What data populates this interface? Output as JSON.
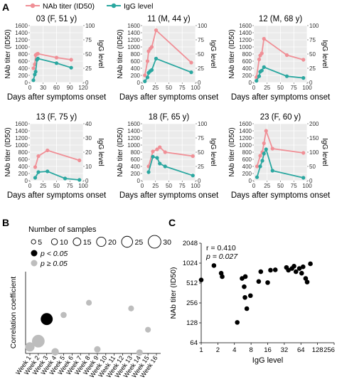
{
  "panel_labels": {
    "a": "A",
    "b": "B",
    "c": "C"
  },
  "colors": {
    "nab": "#f08f96",
    "igg": "#2aa7a0",
    "panel_bg": "#ebebeb",
    "grid": "#ffffff",
    "sig": "#000000",
    "nonsig": "#bdbdbd",
    "text": "#222222"
  },
  "chart_data": [
    {
      "type": "line",
      "panel": "A",
      "legend": {
        "placement": "top-left",
        "nab_label": "NAb titer (ID50)",
        "igg_label": "IgG level"
      },
      "xlabel": "Days after symptoms onset",
      "ylabel_left": "NAb titer (ID50)",
      "ylabel_right": "IgG level",
      "grid": true,
      "subplots": [
        {
          "title": "03 (F, 51 y)",
          "xlim": [
            0,
            120
          ],
          "xticks": [
            0,
            30,
            60,
            90,
            120
          ],
          "ylim_left": [
            0,
            1600
          ],
          "yticks_left": [
            0,
            200,
            400,
            600,
            800,
            1000,
            1200,
            1400,
            1600
          ],
          "ylim_right": [
            0,
            100
          ],
          "yticks_right": [
            0,
            25,
            50,
            75,
            100
          ],
          "nab": {
            "x": [
              8,
              11,
              13,
              16,
              18,
              60,
              93
            ],
            "y": [
              400,
              510,
              770,
              800,
              810,
              700,
              640
            ]
          },
          "igg": {
            "x": [
              8,
              11,
              13,
              16,
              18,
              60,
              93
            ],
            "y": [
              4,
              14,
              19,
              40,
              42,
              34,
              26
            ]
          }
        },
        {
          "title": "11 (M, 44 y)",
          "xlim": [
            0,
            100
          ],
          "xticks": [
            0,
            25,
            50,
            75,
            100
          ],
          "ylim_left": [
            0,
            1600
          ],
          "yticks_left": [
            0,
            200,
            400,
            600,
            800,
            1000,
            1200,
            1400,
            1600
          ],
          "ylim_right": [
            0,
            100
          ],
          "yticks_right": [
            0,
            25,
            50,
            75,
            100
          ],
          "nab": {
            "x": [
              5,
              10,
              12,
              15,
              18,
              26,
              92
            ],
            "y": [
              200,
              600,
              880,
              950,
              1000,
              1470,
              560
            ]
          },
          "igg": {
            "x": [
              5,
              10,
              12,
              15,
              18,
              26,
              92
            ],
            "y": [
              2,
              9,
              17,
              20,
              22,
              42,
              18
            ]
          }
        },
        {
          "title": "12 (M, 68 y)",
          "xlim": [
            0,
            100
          ],
          "xticks": [
            0,
            25,
            50,
            75,
            100
          ],
          "ylim_left": [
            0,
            1600
          ],
          "yticks_left": [
            0,
            200,
            400,
            600,
            800,
            1000,
            1200,
            1400,
            1600
          ],
          "ylim_right": [
            0,
            100
          ],
          "yticks_right": [
            0,
            25,
            50,
            75,
            100
          ],
          "nab": {
            "x": [
              5,
              10,
              12,
              15,
              19,
              62,
              93
            ],
            "y": [
              150,
              650,
              760,
              820,
              1230,
              770,
              640
            ]
          },
          "igg": {
            "x": [
              5,
              10,
              12,
              15,
              19,
              62,
              93
            ],
            "y": [
              3,
              11,
              19,
              21,
              27,
              11,
              8
            ]
          }
        },
        {
          "title": "13 (F, 75 y)",
          "xlim": [
            0,
            100
          ],
          "xticks": [
            0,
            25,
            50,
            75,
            100
          ],
          "ylim_left": [
            0,
            1600
          ],
          "yticks_left": [
            0,
            200,
            400,
            600,
            800,
            1000,
            1200,
            1400,
            1600
          ],
          "ylim_right": [
            0,
            40
          ],
          "yticks_right": [
            0,
            10,
            20,
            30,
            40
          ],
          "nab": {
            "x": [
              10,
              16,
              33,
              93
            ],
            "y": [
              380,
              690,
              850,
              570
            ]
          },
          "igg": {
            "x": [
              10,
              16,
              33,
              66,
              93
            ],
            "y": [
              2,
              6,
              6.5,
              1.5,
              0.5
            ]
          }
        },
        {
          "title": "18 (F, 65 y)",
          "xlim": [
            0,
            100
          ],
          "xticks": [
            0,
            25,
            50,
            75,
            100
          ],
          "ylim_left": [
            0,
            1600
          ],
          "yticks_left": [
            0,
            200,
            400,
            600,
            800,
            1000,
            1200,
            1400,
            1600
          ],
          "ylim_right": [
            0,
            100
          ],
          "yticks_right": [
            0,
            25,
            50,
            75,
            100
          ],
          "nab": {
            "x": [
              12,
              20,
              28,
              33,
              43,
              95
            ],
            "y": [
              400,
              820,
              880,
              940,
              800,
              690
            ]
          },
          "igg": {
            "x": [
              12,
              20,
              28,
              33,
              43,
              95
            ],
            "y": [
              15,
              42,
              40,
              30,
              25,
              9
            ]
          }
        },
        {
          "title": "23 (F, 60 y)",
          "xlim": [
            0,
            100
          ],
          "xticks": [
            0,
            25,
            50,
            75,
            100
          ],
          "ylim_left": [
            0,
            1600
          ],
          "yticks_left": [
            0,
            200,
            400,
            600,
            800,
            1000,
            1200,
            1400,
            1600
          ],
          "ylim_right": [
            0,
            200
          ],
          "yticks_right": [
            0,
            50,
            100,
            150,
            200
          ],
          "nab": {
            "x": [
              6,
              12,
              16,
              19,
              23,
              35,
              93
            ],
            "y": [
              400,
              700,
              800,
              1050,
              1400,
              900,
              780
            ]
          },
          "igg": {
            "x": [
              6,
              12,
              16,
              19,
              23,
              35,
              93
            ],
            "y": [
              12,
              50,
              70,
              95,
              110,
              35,
              10
            ]
          }
        }
      ]
    },
    {
      "type": "scatter",
      "panel": "B",
      "ylabel": "Correlation coefficient",
      "xlabel": "",
      "ylim": [
        0,
        1
      ],
      "categories": [
        "Week 1",
        "Week 2",
        "Week 3",
        "Week 4",
        "Week 5",
        "Week 6",
        "Week 7",
        "Week 8",
        "Week 9",
        "Week 10",
        "Week 11",
        "Week 12",
        "Week 13",
        "Week 14",
        "Week 15",
        "Week 16"
      ],
      "points": [
        {
          "week": 1,
          "r": 0.08,
          "n": 20,
          "significant": false
        },
        {
          "week": 2,
          "r": 0.15,
          "n": 30,
          "significant": false
        },
        {
          "week": 3,
          "r": 0.42,
          "n": 28,
          "significant": true
        },
        {
          "week": 4,
          "r": 0.02,
          "n": 14,
          "significant": false
        },
        {
          "week": 5,
          "r": 0.47,
          "n": 10,
          "significant": false
        },
        {
          "week": 8,
          "r": 0.62,
          "n": 9,
          "significant": false
        },
        {
          "week": 9,
          "r": 0.05,
          "n": 11,
          "significant": false
        },
        {
          "week": 13,
          "r": 0.55,
          "n": 9,
          "significant": false
        },
        {
          "week": 14,
          "r": 0.01,
          "n": 11,
          "significant": false
        },
        {
          "week": 15,
          "r": 0.29,
          "n": 9,
          "significant": false
        }
      ],
      "size_legend": {
        "title": "Number of samples",
        "values": [
          5,
          10,
          15,
          20,
          25,
          30
        ]
      },
      "color_legend": {
        "sig": "p < 0.05",
        "nonsig": "p ≥ 0.05"
      }
    },
    {
      "type": "scatter",
      "panel": "C",
      "xlabel": "IgG level",
      "ylabel": "NAb titer (ID50)",
      "xscale": "log2",
      "yscale": "log2",
      "xlim": [
        1,
        256
      ],
      "ylim": [
        64,
        2048
      ],
      "xticks": [
        1,
        2,
        4,
        8,
        16,
        32,
        64,
        128,
        256
      ],
      "yticks": [
        64,
        128,
        256,
        512,
        1024,
        2048
      ],
      "annotation": {
        "line1": "r = 0.410",
        "line2": "p = 0.027"
      },
      "points": [
        [
          1.0,
          570
        ],
        [
          1.7,
          940
        ],
        [
          2.3,
          720
        ],
        [
          2.4,
          640
        ],
        [
          4.5,
          130
        ],
        [
          5.5,
          600
        ],
        [
          6,
          450
        ],
        [
          6.3,
          640
        ],
        [
          6.2,
          310
        ],
        [
          6.7,
          210
        ],
        [
          7.8,
          330
        ],
        [
          11,
          540
        ],
        [
          12,
          760
        ],
        [
          16,
          520
        ],
        [
          18,
          800
        ],
        [
          22,
          810
        ],
        [
          35,
          880
        ],
        [
          38,
          800
        ],
        [
          44,
          850
        ],
        [
          48,
          920
        ],
        [
          52,
          760
        ],
        [
          60,
          850
        ],
        [
          66,
          720
        ],
        [
          70,
          900
        ],
        [
          78,
          600
        ],
        [
          83,
          530
        ],
        [
          95,
          1000
        ]
      ]
    }
  ]
}
